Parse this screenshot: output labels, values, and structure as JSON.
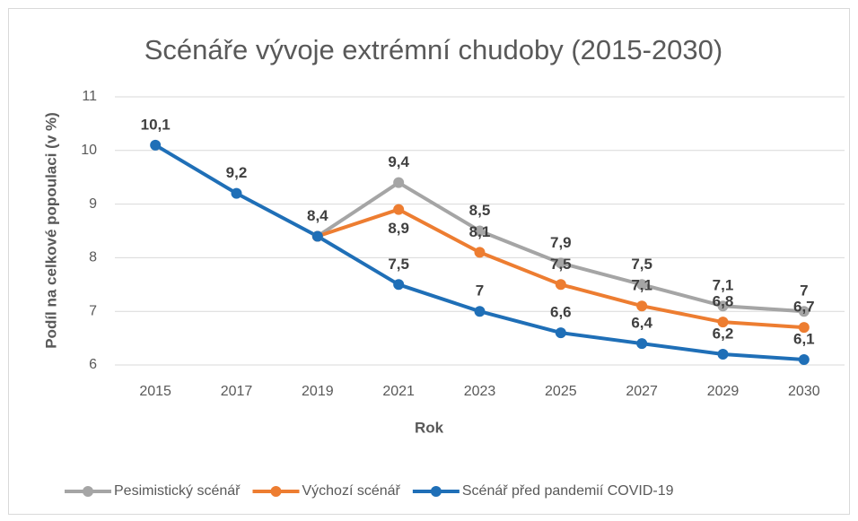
{
  "chart_data": {
    "type": "line",
    "title": "Scénáře vývoje extrémní chudoby (2015-2030)",
    "x_label": "Rok",
    "y_label": "Podíl na celkové popoulaci (v %)",
    "categories": [
      "2015",
      "2017",
      "2019",
      "2021",
      "2023",
      "2025",
      "2027",
      "2029",
      "2030"
    ],
    "series": [
      {
        "name": "Pesimistický scénář",
        "color": "#a5a5a5",
        "values": [
          null,
          null,
          8.4,
          9.4,
          8.5,
          7.9,
          7.5,
          7.1,
          7
        ],
        "value_labels": [
          null,
          null,
          null,
          "9,4",
          "8,5",
          "7,9",
          "7,5",
          "7,1",
          "7"
        ]
      },
      {
        "name": "Výchozí scénář",
        "color": "#ed7d31",
        "values": [
          null,
          null,
          8.4,
          8.9,
          8.1,
          7.5,
          7.1,
          6.8,
          6.7
        ],
        "value_labels": [
          null,
          null,
          null,
          "8,9",
          "8,1",
          "7,5",
          "7,1",
          "6,8",
          "6,7"
        ]
      },
      {
        "name": "Scénář před pandemií COVID-19",
        "color": "#1f6fb7",
        "values": [
          10.1,
          9.2,
          8.4,
          7.5,
          7,
          6.6,
          6.4,
          6.2,
          6.1
        ],
        "value_labels": [
          "10,1",
          "9,2",
          "8,4",
          "7,5",
          "7",
          "6,6",
          "6,4",
          "6,2",
          "6,1"
        ]
      }
    ],
    "ylim": [
      6,
      11
    ],
    "yticks": [
      6,
      7,
      8,
      9,
      10,
      11
    ],
    "grid": true,
    "legend": "bottom"
  }
}
